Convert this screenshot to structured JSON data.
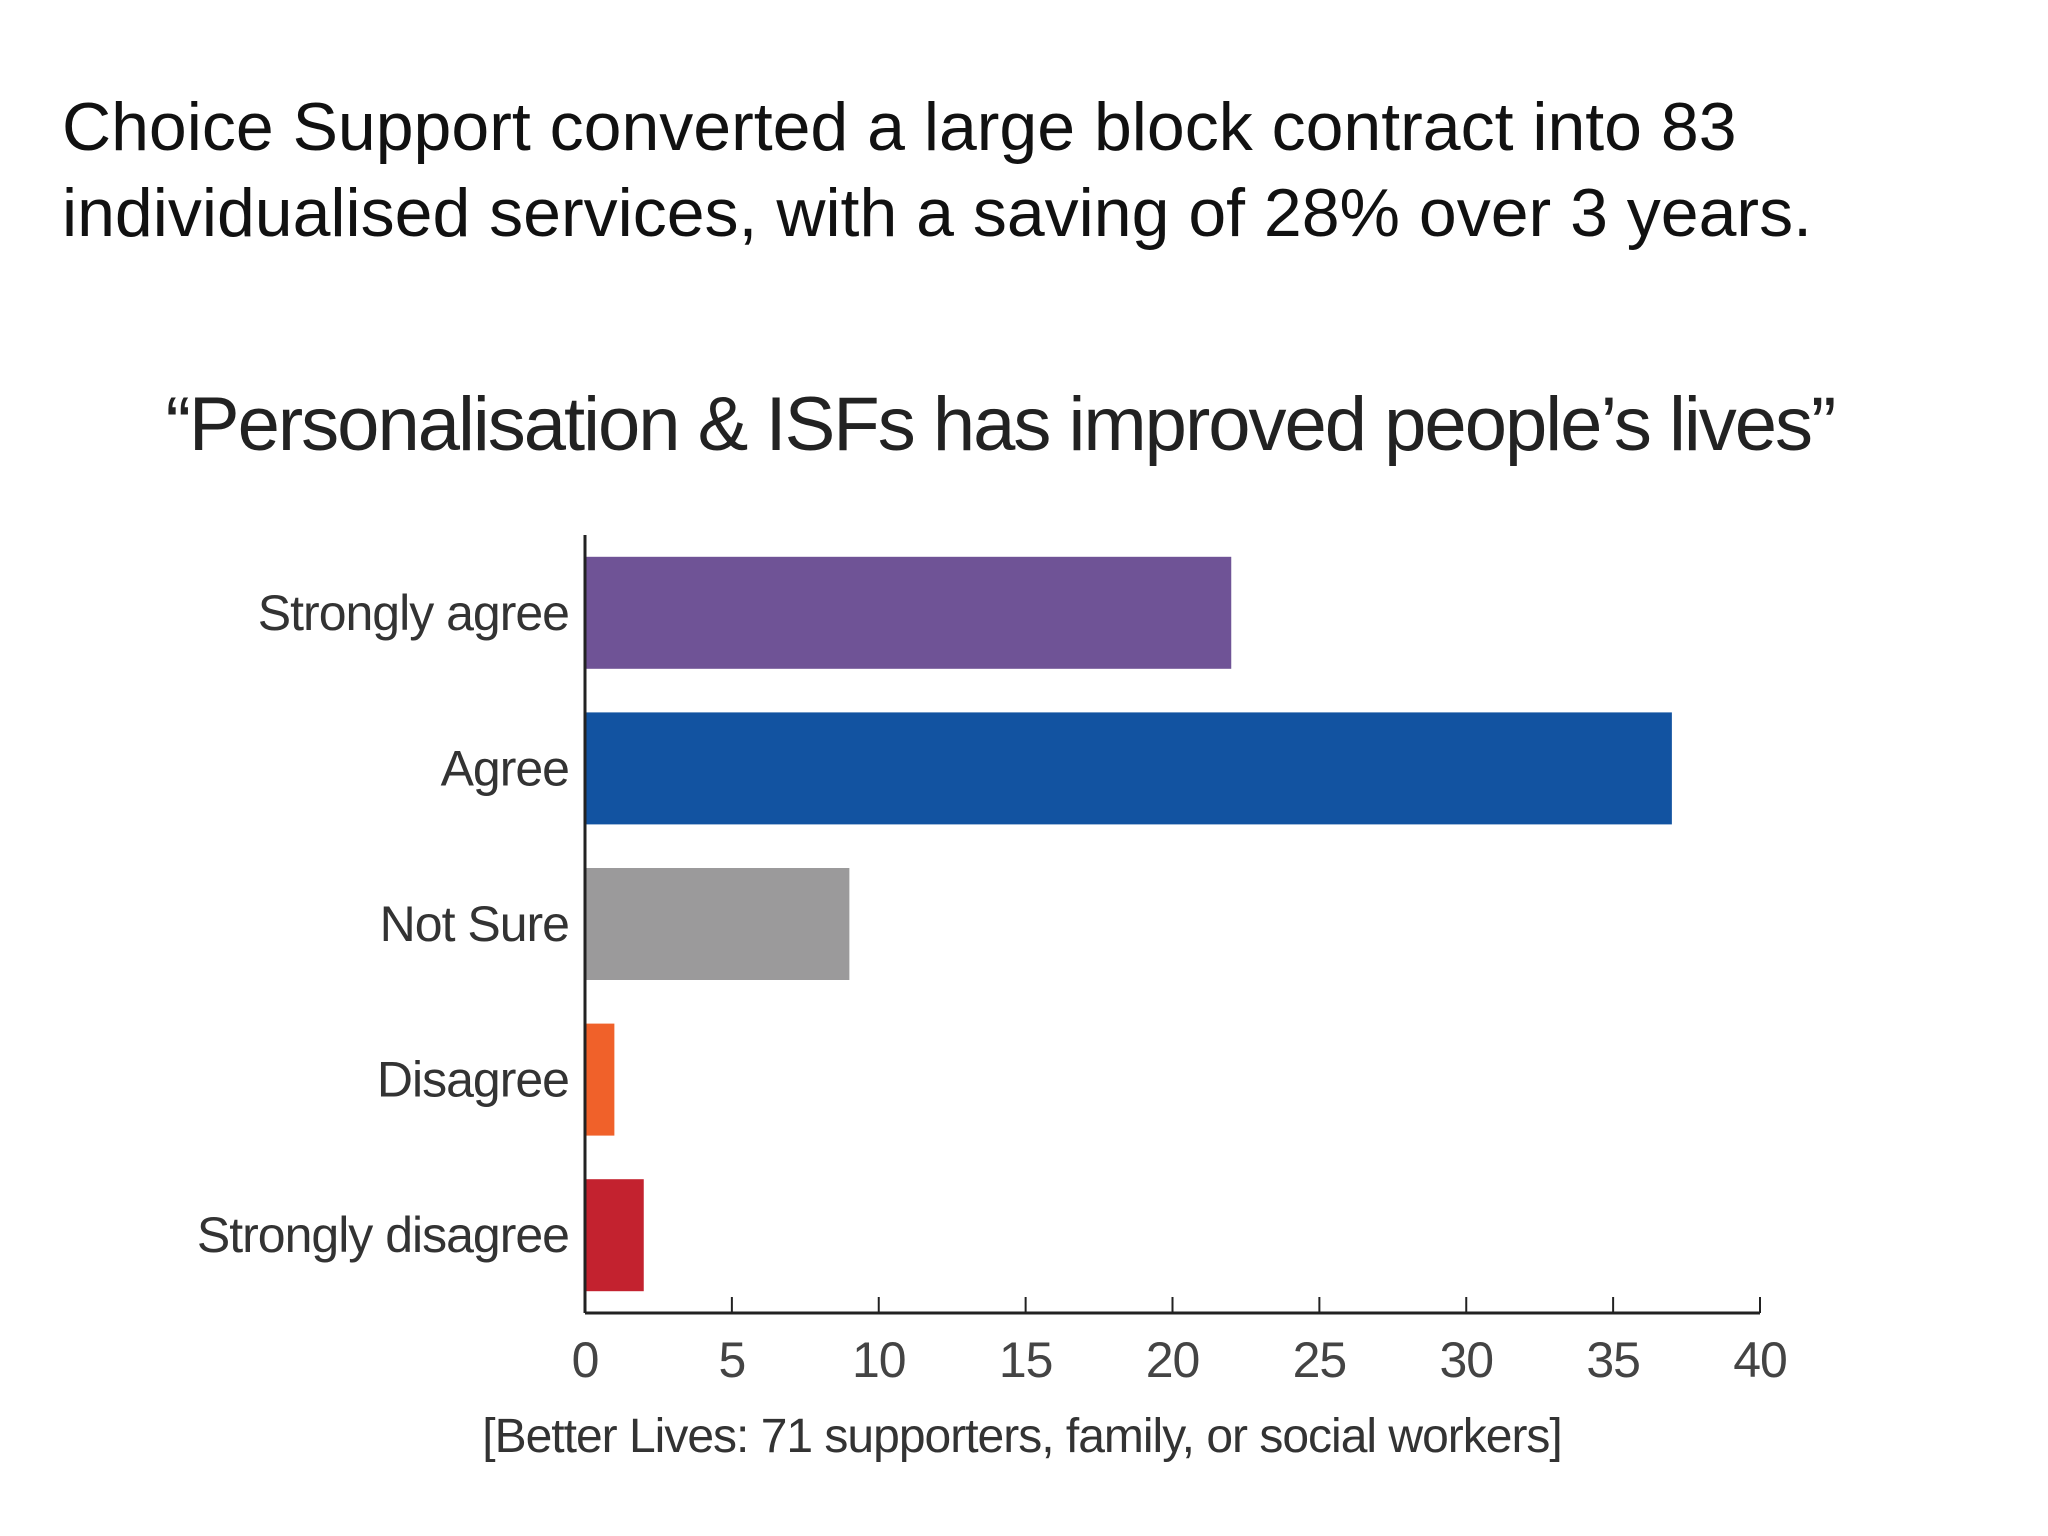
{
  "slide": {
    "title_line1": "Choice Support converted a large block contract into 83",
    "title_line2": "individualised services, with a saving of 28% over 3 years."
  },
  "chart_data": {
    "type": "bar",
    "orientation": "horizontal",
    "title": "“Personalisation & ISFs has improved people’s lives”",
    "xlabel": "[Better Lives: 71 supporters, family, or social workers]",
    "ylabel": "",
    "categories": [
      "Strongly agree",
      "Agree",
      "Not Sure",
      "Disagree",
      "Strongly disagree"
    ],
    "values": [
      22,
      37,
      9,
      1,
      2
    ],
    "colors": [
      "#6f5396",
      "#1253a1",
      "#9b9a9b",
      "#f0612a",
      "#c3222f"
    ],
    "xlim": [
      0,
      40
    ],
    "xticks": [
      0,
      5,
      10,
      15,
      20,
      25,
      30,
      35,
      40
    ],
    "grid": false,
    "legend": "none"
  }
}
